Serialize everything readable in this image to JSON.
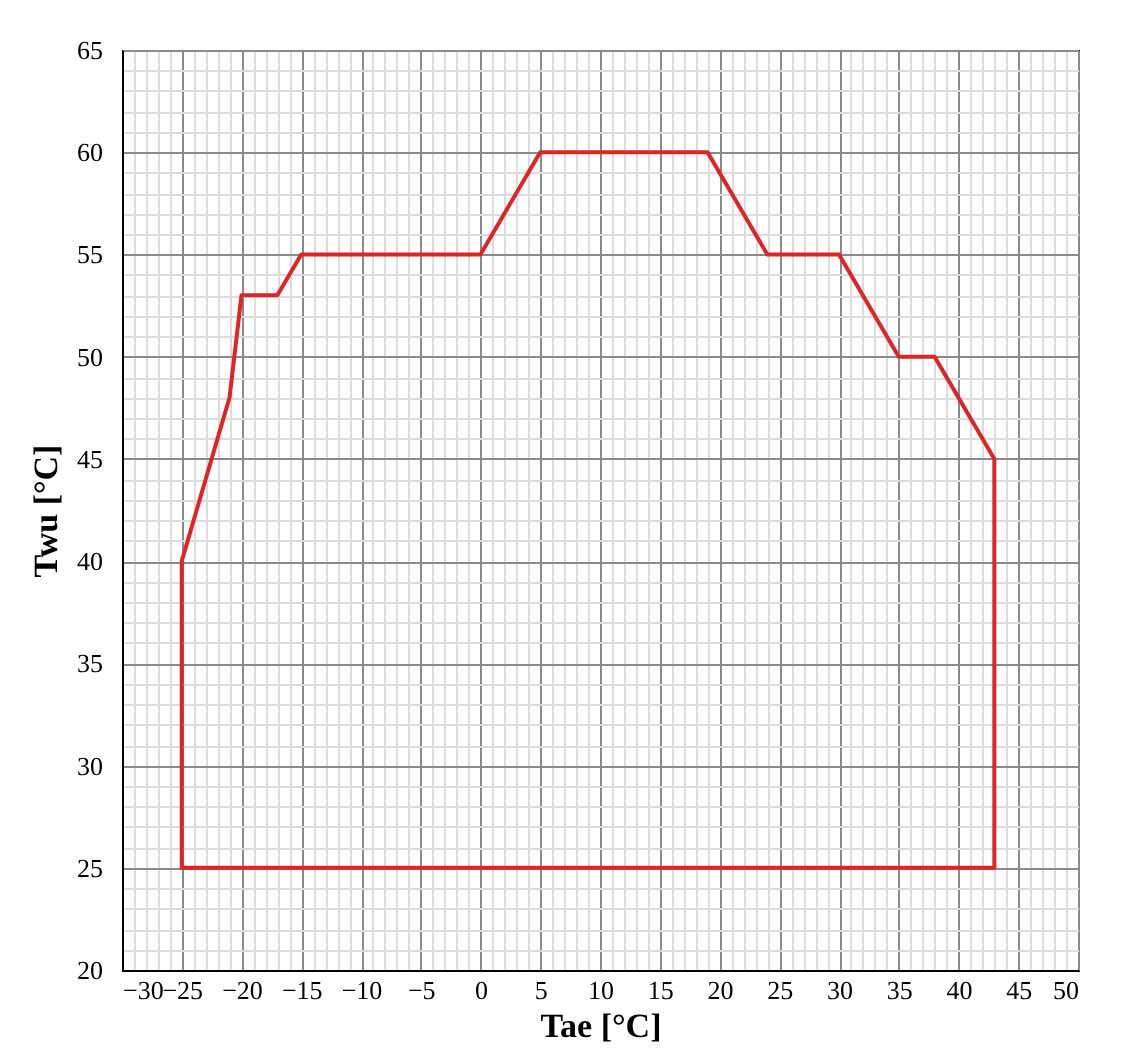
{
  "chart_data": {
    "type": "line",
    "xlabel": "Tae [°C]",
    "ylabel": "Twu [°C]",
    "series": [
      {
        "color": "#e02424",
        "x": [
          -25,
          -25,
          -21,
          -20,
          -17,
          -15,
          0,
          5,
          19,
          24,
          30,
          35,
          38,
          43,
          43
        ],
        "values": [
          25,
          40,
          48,
          53,
          53,
          55,
          55,
          60,
          60,
          55,
          55,
          50,
          50,
          45,
          25
        ]
      },
      {
        "color": "#e02424",
        "x": [
          43,
          -25
        ],
        "values": [
          25,
          25
        ]
      }
    ],
    "xlim": [
      -30,
      50
    ],
    "ylim": [
      20,
      65
    ],
    "xticks": [
      -30,
      -25,
      -20,
      -15,
      -10,
      -5,
      0,
      5,
      10,
      15,
      20,
      25,
      30,
      35,
      40,
      45,
      50
    ],
    "yticks": [
      20,
      25,
      30,
      35,
      40,
      45,
      50,
      55,
      60,
      65
    ],
    "grid": true
  }
}
